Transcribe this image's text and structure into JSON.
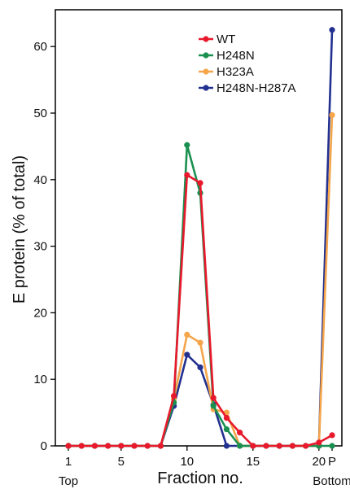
{
  "chart_data": {
    "type": "line",
    "title": "",
    "xlabel": "Fraction no.",
    "ylabel": "E protein (% of total)",
    "ylim": [
      0,
      65
    ],
    "xlim": [
      0.5,
      21.5
    ],
    "x_ticks": [
      {
        "x": 1,
        "label": "1"
      },
      {
        "x": 5,
        "label": "5"
      },
      {
        "x": 10,
        "label": "10"
      },
      {
        "x": 15,
        "label": "15"
      },
      {
        "x": 20,
        "label": "20"
      },
      {
        "x": 21,
        "label": "P"
      }
    ],
    "y_ticks": [
      0,
      10,
      20,
      30,
      40,
      50,
      60
    ],
    "annotations": [
      {
        "x": 1,
        "text": "Top"
      },
      {
        "x": 21,
        "text": "Bottom"
      }
    ],
    "legend_position": "top-right",
    "series": [
      {
        "name": "WT",
        "color": "#e8192c",
        "x": [
          1,
          2,
          3,
          4,
          5,
          6,
          7,
          8,
          9,
          10,
          11,
          12,
          13,
          14,
          15,
          16,
          17,
          18,
          19,
          20,
          21
        ],
        "values": [
          0,
          0,
          0,
          0,
          0,
          0,
          0,
          0,
          7.5,
          40.7,
          39.5,
          7.2,
          4.2,
          2.0,
          0,
          0,
          0,
          0,
          0,
          0.5,
          1.6
        ]
      },
      {
        "name": "H248N",
        "color": "#1a9050",
        "x": [
          1,
          2,
          3,
          4,
          5,
          6,
          7,
          8,
          9,
          10,
          11,
          12,
          13,
          14,
          15,
          16,
          17,
          18,
          19,
          20,
          21
        ],
        "values": [
          0,
          0,
          0,
          0,
          0,
          0,
          0,
          0,
          6.5,
          45.2,
          38.0,
          6.0,
          2.5,
          0,
          0,
          0,
          0,
          0,
          0,
          0,
          0
        ]
      },
      {
        "name": "H323A",
        "color": "#f5a54a",
        "x": [
          1,
          2,
          3,
          4,
          5,
          6,
          7,
          8,
          9,
          10,
          11,
          12,
          13,
          14,
          15,
          16,
          17,
          18,
          19,
          20,
          21
        ],
        "values": [
          0,
          0,
          0,
          0,
          0,
          0,
          0,
          0,
          7.0,
          16.7,
          15.5,
          5.5,
          5.0,
          0,
          0,
          0,
          0,
          0,
          0,
          0,
          49.7
        ]
      },
      {
        "name": "H248N-H287A",
        "color": "#22308f",
        "x": [
          1,
          2,
          3,
          4,
          5,
          6,
          7,
          8,
          9,
          10,
          11,
          12,
          13,
          14,
          15,
          16,
          17,
          18,
          19,
          20,
          21
        ],
        "values": [
          0,
          0,
          0,
          0,
          0,
          0,
          0,
          0,
          6.0,
          13.7,
          11.8,
          6.2,
          0,
          0,
          0,
          0,
          0,
          0,
          0,
          0,
          62.5
        ]
      }
    ],
    "draw_order": [
      "H248N-H287A",
      "H323A",
      "H248N",
      "WT"
    ]
  }
}
